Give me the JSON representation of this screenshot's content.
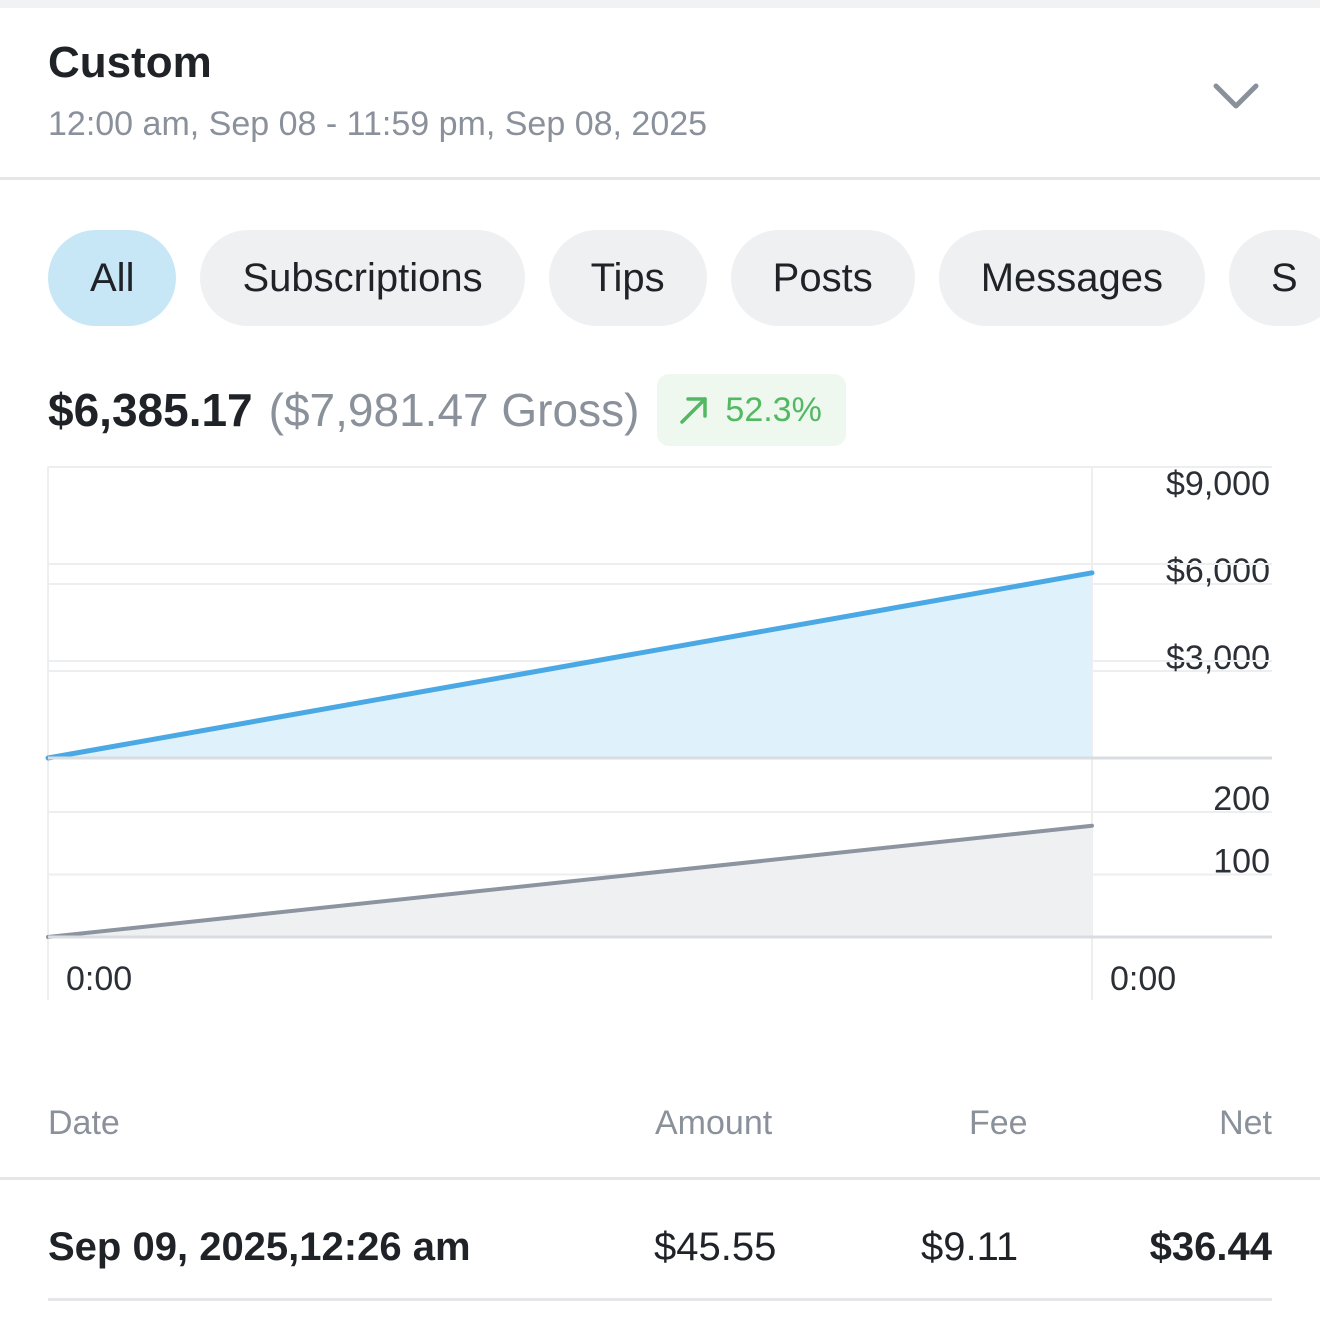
{
  "range": {
    "title": "Custom",
    "subtitle": "12:00 am, Sep 08 - 11:59 pm, Sep 08, 2025",
    "toggle_icon": "chevron-down-icon"
  },
  "tabs": [
    {
      "label": "All",
      "active": true
    },
    {
      "label": "Subscriptions",
      "active": false
    },
    {
      "label": "Tips",
      "active": false
    },
    {
      "label": "Posts",
      "active": false
    },
    {
      "label": "Messages",
      "active": false
    },
    {
      "label": "S",
      "active": false
    }
  ],
  "summary": {
    "net": "$6,385.17",
    "gross": "($7,981.47 Gross)",
    "change": "52.3%",
    "change_icon": "trend-up-arrow-icon",
    "change_color": "#52b862"
  },
  "chart_data": [
    {
      "type": "area",
      "x": [
        "0:00",
        "0:00"
      ],
      "series": [
        {
          "values": [
            0,
            6385.17
          ],
          "color": "#4aa8e4"
        }
      ],
      "ylim": [
        0,
        9000
      ],
      "y_ticks": [
        "$3,000",
        "$6,000",
        "$9,000"
      ],
      "y_tick_values": [
        3000,
        6000,
        9000
      ],
      "grid": true
    },
    {
      "type": "area",
      "x": [
        "0:00",
        "0:00"
      ],
      "series": [
        {
          "values": [
            0,
            178
          ],
          "color": "#8c94a0"
        }
      ],
      "ylim": [
        0,
        200
      ],
      "y_ticks": [
        "100",
        "200"
      ],
      "y_tick_values": [
        100,
        200
      ],
      "grid": true
    }
  ],
  "table": {
    "headers": {
      "date": "Date",
      "amount": "Amount",
      "fee": "Fee",
      "net": "Net"
    },
    "rows": [
      {
        "date": "Sep 09, 2025,12:26 am",
        "amount": "$45.55",
        "fee": "$9.11",
        "net": "$36.44"
      }
    ]
  }
}
